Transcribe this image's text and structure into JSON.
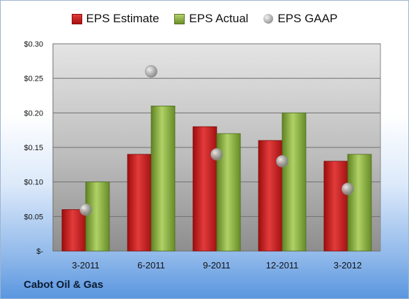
{
  "company": "Cabot Oil & Gas",
  "legend": {
    "estimate": "EPS Estimate",
    "actual": "EPS Actual",
    "gaap": "EPS GAAP"
  },
  "colors": {
    "estimate": "#c81e1e",
    "actual": "#8db83e",
    "gaap": "#a6a6a6"
  },
  "chart_data": {
    "type": "bar",
    "categories": [
      "3-2011",
      "6-2011",
      "9-2011",
      "12-2011",
      "3-2012"
    ],
    "series": [
      {
        "name": "EPS Estimate",
        "values": [
          0.06,
          0.14,
          0.18,
          0.16,
          0.13
        ]
      },
      {
        "name": "EPS Actual",
        "values": [
          0.1,
          0.21,
          0.17,
          0.2,
          0.14
        ]
      },
      {
        "name": "EPS GAAP",
        "type": "scatter",
        "values": [
          0.06,
          0.26,
          0.14,
          0.13,
          0.09
        ]
      }
    ],
    "yticks": [
      "$-",
      "$0.05",
      "$0.10",
      "$0.15",
      "$0.20",
      "$0.25",
      "$0.30"
    ],
    "ylim": [
      0,
      0.3
    ],
    "grid": true,
    "legend_position": "top"
  }
}
